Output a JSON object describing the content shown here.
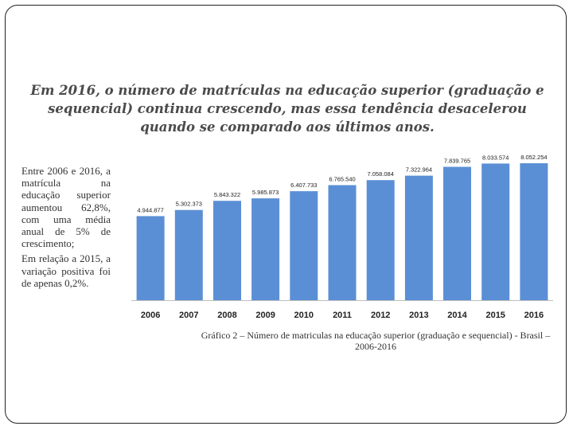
{
  "slide": {
    "headline": "Em 2016, o número de matrículas na educação superior (graduação e sequencial) continua crescendo, mas essa tendência desacelerou quando se comparado aos últimos anos.",
    "side_paragraphs": [
      "Entre 2006 e 2016, a matrícula na educação superior aumentou 62,8%, com uma média anual de 5% de crescimento;",
      "Em relação a 2015, a variação positiva foi de apenas 0,2%."
    ],
    "caption": "Gráfico 2 – Número de matriculas na educação superior (graduação e sequencial) - Brasil – 2006-2016"
  },
  "chart_data": {
    "type": "bar",
    "categories": [
      "2006",
      "2007",
      "2008",
      "2009",
      "2010",
      "2011",
      "2012",
      "2013",
      "2014",
      "2015",
      "2016"
    ],
    "values": [
      4944877,
      5302373,
      5843322,
      5985873,
      6407733,
      6765540,
      7058084,
      7322964,
      7839765,
      8033574,
      8052254
    ],
    "data_labels": [
      "4.944.877",
      "5.302.373",
      "5.843.322",
      "5.985.873",
      "6.407.733",
      "6.765.540",
      "7.058.084",
      "7.322.964",
      "7.839.765",
      "8.033.574",
      "8.052.254"
    ],
    "title": "",
    "xlabel": "",
    "ylabel": "",
    "ylim": [
      0,
      8800000
    ],
    "grid": false,
    "bar_color": "#5b8fd5"
  }
}
